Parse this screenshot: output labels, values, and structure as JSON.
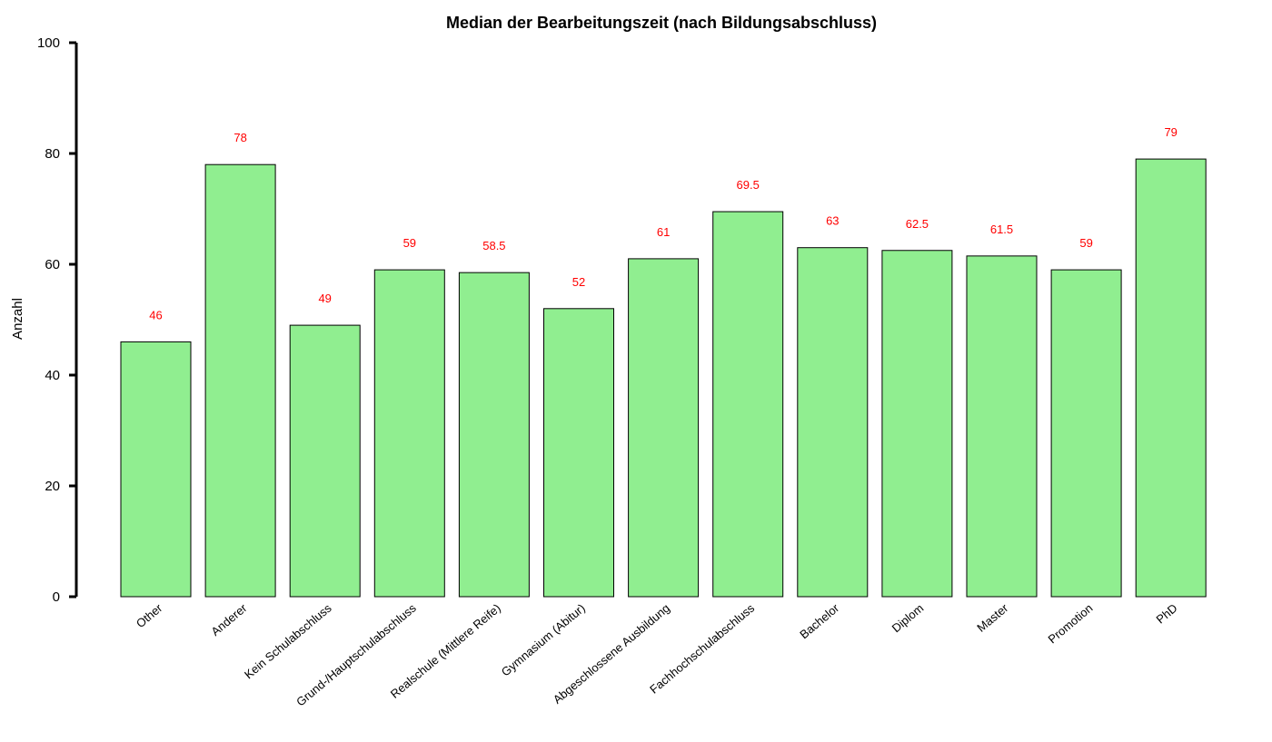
{
  "chart_data": {
    "type": "bar",
    "title": "Median der Bearbeitungszeit (nach Bildungsabschluss)",
    "xlabel": "",
    "ylabel": "Anzahl",
    "ylim": [
      0,
      100
    ],
    "yticks": [
      0,
      20,
      40,
      60,
      80,
      100
    ],
    "categories": [
      "Other",
      "Anderer",
      "Kein Schulabschluss",
      "Grund-/Hauptschulabschluss",
      "Realschule (Mittlere Reife)",
      "Gymnasium (Abitur)",
      "Abgeschlossene Ausbildung",
      "Fachhochschulabschluss",
      "Bachelor",
      "Diplom",
      "Master",
      "Promotion",
      "PhD"
    ],
    "values": [
      46,
      78,
      49,
      59,
      58.5,
      52,
      61,
      69.5,
      63,
      62.5,
      61.5,
      59,
      79
    ],
    "data_labels": [
      "46",
      "78",
      "49",
      "59",
      "58.5",
      "52",
      "61",
      "69.5",
      "63",
      "62.5",
      "61.5",
      "59",
      "79"
    ],
    "grid": false,
    "colors": {
      "bar_fill": "#90ee90",
      "bar_stroke": "#000000",
      "data_label": "#ff0000",
      "axis": "#000000"
    }
  }
}
